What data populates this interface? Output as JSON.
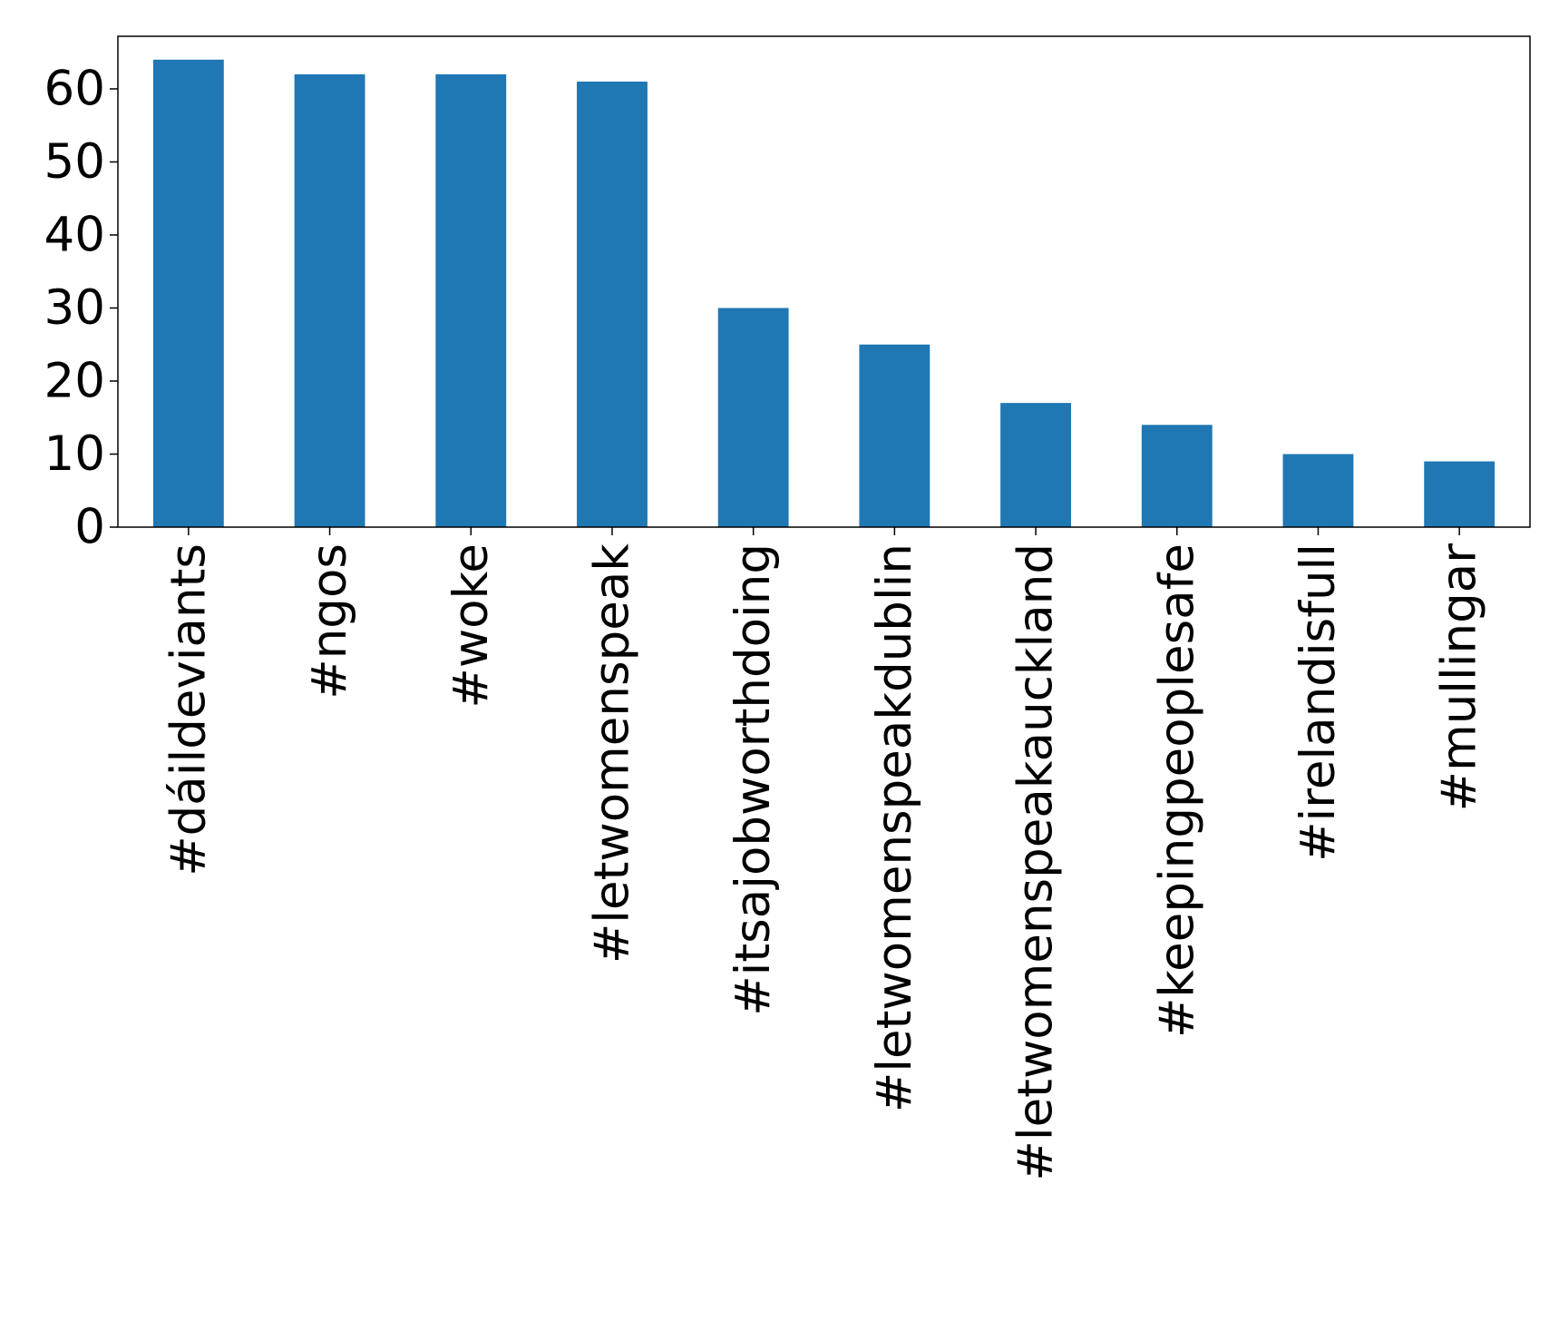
{
  "chart_data": {
    "type": "bar",
    "categories": [
      "#dáildeviants",
      "#ngos",
      "#woke",
      "#letwomenspeak",
      "#itsajobworthdoing",
      "#letwomenspeakdublin",
      "#letwomenspeakauckland",
      "#keepingpeoplesafe",
      "#irelandisfull",
      "#mullingar"
    ],
    "values": [
      64,
      62,
      62,
      61,
      30,
      25,
      17,
      14,
      10,
      9
    ],
    "color": "#1f77b4",
    "ylim": [
      0,
      67.2
    ],
    "yticks": [
      0,
      10,
      20,
      30,
      40,
      50,
      60
    ],
    "grid": false
  }
}
